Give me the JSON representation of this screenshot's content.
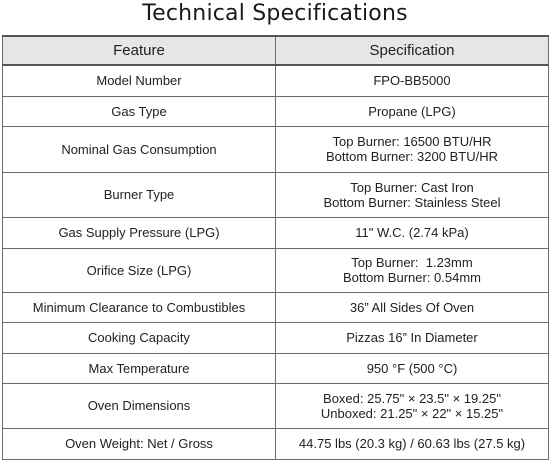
{
  "title": "Technical Specifications",
  "table": {
    "headers": [
      "Feature",
      "Specification"
    ],
    "rows": [
      {
        "feature": "Model Number",
        "spec": [
          "FPO-BB5000"
        ]
      },
      {
        "feature": "Gas Type",
        "spec": [
          "Propane (LPG)"
        ]
      },
      {
        "feature": "Nominal Gas Consumption",
        "spec": [
          "Top Burner: 16500 BTU/HR",
          "Bottom Burner: 3200 BTU/HR"
        ]
      },
      {
        "feature": "Burner Type",
        "spec": [
          "Top Burner: Cast Iron",
          "Bottom Burner: Stainless Steel"
        ]
      },
      {
        "feature": "Gas Supply Pressure (LPG)",
        "spec": [
          "11\" W.C. (2.74 kPa)"
        ]
      },
      {
        "feature": "Orifice Size (LPG)",
        "spec": [
          "Top Burner:  1.23mm",
          "Bottom Burner: 0.54mm"
        ]
      },
      {
        "feature": "Minimum Clearance to Combustibles",
        "spec": [
          "36” All Sides Of Oven"
        ]
      },
      {
        "feature": "Cooking Capacity",
        "spec": [
          "Pizzas 16” In Diameter"
        ]
      },
      {
        "feature": "Max Temperature",
        "spec": [
          "950 °F (500 °C)"
        ]
      },
      {
        "feature": "Oven Dimensions",
        "spec": [
          "Boxed: 25.75\" × 23.5\" × 19.25\"",
          "Unboxed: 21.25\" × 22\" × 15.25\""
        ]
      },
      {
        "feature": "Oven Weight: Net / Gross",
        "spec": [
          "44.75 lbs (20.3 kg) / 60.63 lbs (27.5 kg)"
        ]
      }
    ]
  }
}
